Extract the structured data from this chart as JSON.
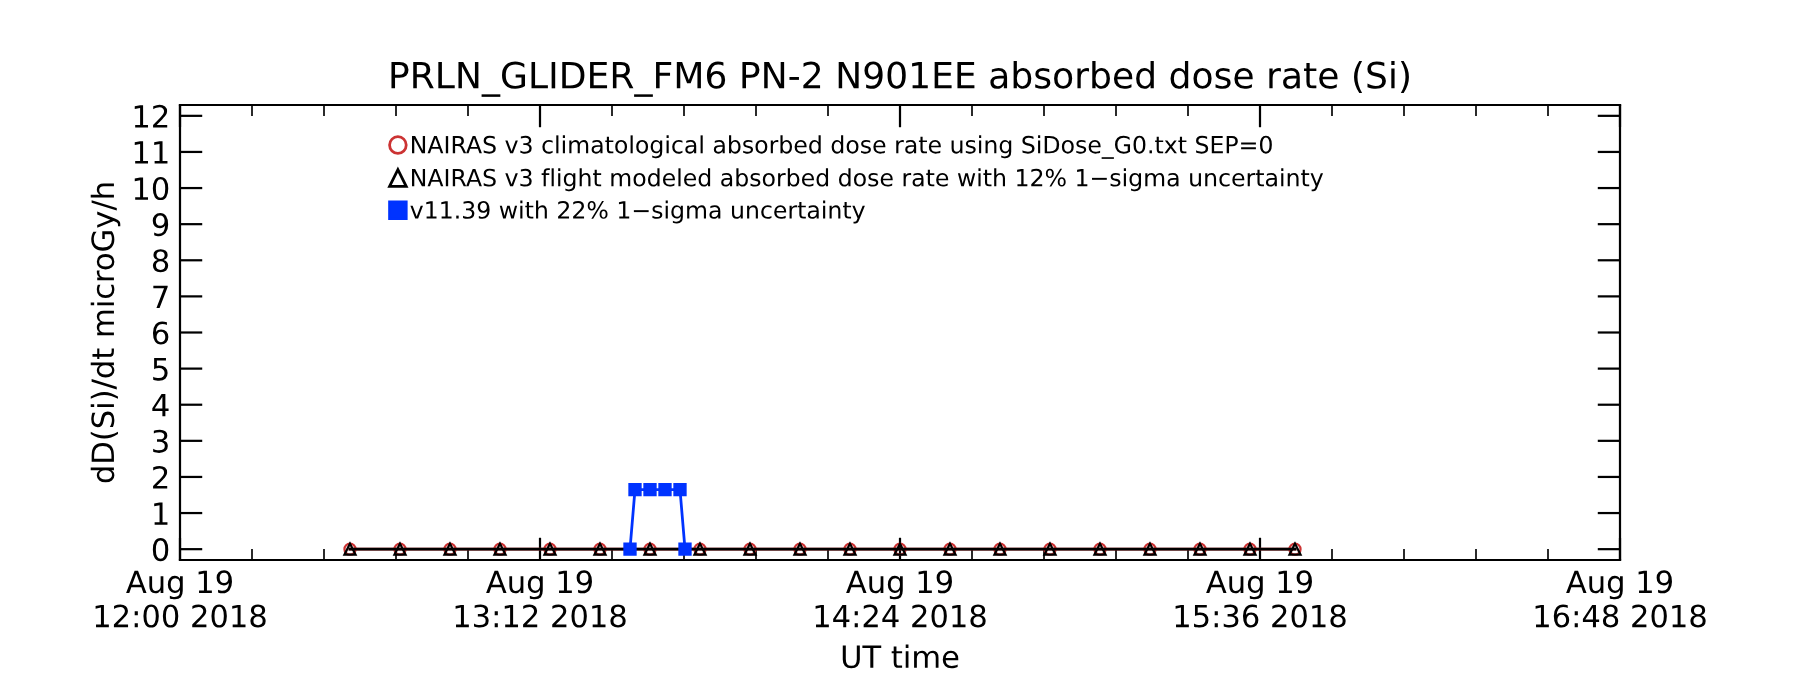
{
  "chart_data": {
    "type": "line",
    "title": "PRLN_GLIDER_FM6 PN-2 N901EE absorbed dose rate (Si)",
    "xlabel": "UT time",
    "ylabel": "dD(Si)/dt microGy/h",
    "xlim": [
      "2018-08-19T12:00",
      "2018-08-19T16:48"
    ],
    "xticks": [
      {
        "value": "2018-08-19T12:00",
        "label": "Aug 19\n12:00 2018"
      },
      {
        "value": "2018-08-19T13:12",
        "label": "Aug 19\n13:12 2018"
      },
      {
        "value": "2018-08-19T14:24",
        "label": "Aug 19\n14:24 2018"
      },
      {
        "value": "2018-08-19T15:36",
        "label": "Aug 19\n15:36 2018"
      },
      {
        "value": "2018-08-19T16:48",
        "label": "Aug 19\n16:48 2018"
      }
    ],
    "ylim": [
      -0.3,
      12.3
    ],
    "yticks": [
      0,
      1,
      2,
      3,
      4,
      5,
      6,
      7,
      8,
      9,
      10,
      11,
      12
    ],
    "grid": false,
    "legend": "top left",
    "series": [
      {
        "name": "NAIRAS v3 climatological absorbed dose rate using SiDose_G0.txt SEP=0",
        "color": "#cc3333",
        "marker": "circle",
        "line_style": "solid",
        "x": [
          "2018-08-19T12:34",
          "2018-08-19T12:44",
          "2018-08-19T12:54",
          "2018-08-19T13:04",
          "2018-08-19T13:14",
          "2018-08-19T13:24",
          "2018-08-19T13:34",
          "2018-08-19T13:44",
          "2018-08-19T13:54",
          "2018-08-19T14:04",
          "2018-08-19T14:14",
          "2018-08-19T14:24",
          "2018-08-19T14:34",
          "2018-08-19T14:44",
          "2018-08-19T14:54",
          "2018-08-19T15:04",
          "2018-08-19T15:14",
          "2018-08-19T15:24",
          "2018-08-19T15:34",
          "2018-08-19T15:43"
        ],
        "values": [
          0,
          0,
          0,
          0,
          0,
          0,
          0,
          0,
          0,
          0,
          0,
          0,
          0,
          0,
          0,
          0,
          0,
          0,
          0,
          0
        ]
      },
      {
        "name": "NAIRAS v3 flight modeled absorbed dose rate with 12% 1−sigma uncertainty",
        "color": "#000000",
        "marker": "triangle",
        "line_style": "solid",
        "x": [
          "2018-08-19T12:34",
          "2018-08-19T12:44",
          "2018-08-19T12:54",
          "2018-08-19T13:04",
          "2018-08-19T13:14",
          "2018-08-19T13:24",
          "2018-08-19T13:34",
          "2018-08-19T13:44",
          "2018-08-19T13:54",
          "2018-08-19T14:04",
          "2018-08-19T14:14",
          "2018-08-19T14:24",
          "2018-08-19T14:34",
          "2018-08-19T14:44",
          "2018-08-19T14:54",
          "2018-08-19T15:04",
          "2018-08-19T15:14",
          "2018-08-19T15:24",
          "2018-08-19T15:34",
          "2018-08-19T15:43"
        ],
        "values": [
          0,
          0,
          0,
          0,
          0,
          0,
          0,
          0,
          0,
          0,
          0,
          0,
          0,
          0,
          0,
          0,
          0,
          0,
          0,
          0
        ]
      },
      {
        "name": "v11.39 with 22% 1−sigma uncertainty",
        "color": "#0033ff",
        "marker": "square",
        "line_style": "solid",
        "x": [
          "2018-08-19T13:30",
          "2018-08-19T13:31",
          "2018-08-19T13:34",
          "2018-08-19T13:37",
          "2018-08-19T13:40",
          "2018-08-19T13:41"
        ],
        "values": [
          0,
          1.65,
          1.65,
          1.65,
          1.65,
          0
        ]
      }
    ]
  }
}
